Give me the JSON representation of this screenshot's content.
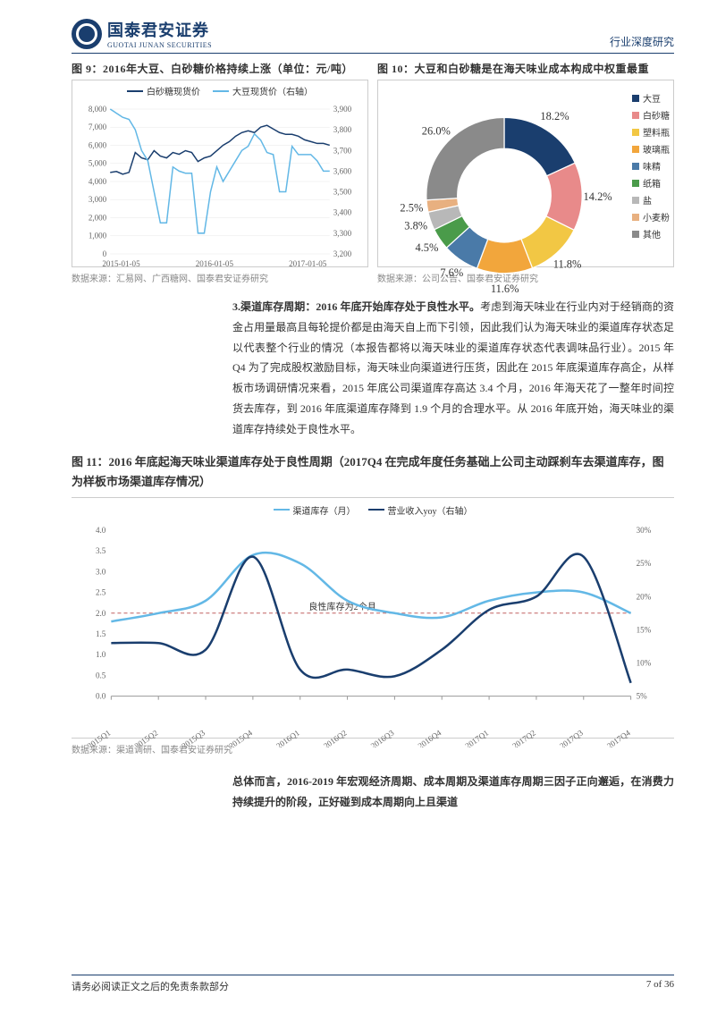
{
  "header": {
    "logo_cn": "国泰君安证券",
    "logo_en": "GUOTAI JUNAN SECURITIES",
    "right": "行业深度研究"
  },
  "fig9": {
    "title": "图 9：2016年大豆、白砂糖价格持续上涨（单位：元/吨）",
    "legend1": "白砂糖现货价",
    "legend2": "大豆现货价（右轴）",
    "color1": "#1a3e6e",
    "color2": "#63b8e6",
    "xticks": [
      "2015-01-05",
      "2016-01-05",
      "2017-01-05"
    ],
    "left_ticks": [
      "0",
      "1,000",
      "2,000",
      "3,000",
      "4,000",
      "5,000",
      "6,000",
      "7,000",
      "8,000"
    ],
    "right_ticks": [
      "3,200",
      "3,300",
      "3,400",
      "3,500",
      "3,600",
      "3,700",
      "3,800",
      "3,900"
    ],
    "source": "数据来源：汇易网、广西糖网、国泰君安证券研究",
    "series1_y": [
      4500,
      4550,
      4400,
      4500,
      5600,
      5300,
      5200,
      5700,
      5400,
      5300,
      5600,
      5500,
      5700,
      5600,
      5100,
      5300,
      5400,
      5700,
      6000,
      6200,
      6500,
      6700,
      6800,
      6700,
      7000,
      7100,
      6900,
      6700,
      6600,
      6600,
      6500,
      6300,
      6200,
      6100,
      6100,
      6000
    ],
    "series2_y": [
      3900,
      3880,
      3860,
      3850,
      3800,
      3700,
      3650,
      3500,
      3350,
      3350,
      3620,
      3600,
      3590,
      3590,
      3300,
      3300,
      3500,
      3620,
      3550,
      3600,
      3650,
      3700,
      3720,
      3780,
      3750,
      3690,
      3680,
      3500,
      3500,
      3720,
      3680,
      3680,
      3680,
      3650,
      3600,
      3600
    ],
    "left_min": 0,
    "left_max": 8000,
    "right_min": 3200,
    "right_max": 3900
  },
  "fig10": {
    "title": "图 10：大豆和白砂糖是在海天味业成本构成中权重最重",
    "source": "数据来源：公司公告、国泰君安证券研究",
    "slices": [
      {
        "label": "大豆",
        "value": 18.2,
        "color": "#1a3e6e"
      },
      {
        "label": "白砂糖",
        "value": 14.2,
        "color": "#e88a8a"
      },
      {
        "label": "塑料瓶",
        "value": 11.8,
        "color": "#f2c744"
      },
      {
        "label": "玻璃瓶",
        "value": 11.6,
        "color": "#f2a63c"
      },
      {
        "label": "味精",
        "value": 7.6,
        "color": "#4a7aa8"
      },
      {
        "label": "纸箱",
        "value": 4.5,
        "color": "#4a9b4a"
      },
      {
        "label": "盐",
        "value": 3.8,
        "color": "#b8b8b8"
      },
      {
        "label": "小麦粉",
        "value": 2.5,
        "color": "#e8b080"
      },
      {
        "label": "其他",
        "value": 26.0,
        "color": "#8a8a8a"
      }
    ],
    "legend": [
      "大豆",
      "白砂糖",
      "塑料瓶",
      "玻璃瓶",
      "味精",
      "纸箱",
      "盐",
      "小麦粉",
      "其他"
    ]
  },
  "paragraph1": {
    "bold": "3.渠道库存周期：2016 年底开始库存处于良性水平。",
    "text": "考虑到海天味业在行业内对于经销商的资金占用量最高且每轮提价都是由海天自上而下引领，因此我们认为海天味业的渠道库存状态足以代表整个行业的情况（本报告都将以海天味业的渠道库存状态代表调味品行业）。2015 年 Q4 为了完成股权激励目标，海天味业向渠道进行压货，因此在 2015 年底渠道库存高企，从样板市场调研情况来看，2015 年底公司渠道库存高达 3.4 个月，2016 年海天花了一整年时间控货去库存，到 2016 年底渠道库存降到 1.9 个月的合理水平。从 2016 年底开始，海天味业的渠道库存持续处于良性水平。"
  },
  "fig11": {
    "title": "图 11：2016 年底起海天味业渠道库存处于良性周期（2017Q4 在完成年度任务基础上公司主动踩刹车去渠道库存，图为样板市场渠道库存情况）",
    "legend1": "渠道库存（月）",
    "legend2": "营业收入yoy（右轴）",
    "color1": "#63b8e6",
    "color2": "#1a3e6e",
    "xticks": [
      "2015Q1",
      "2015Q2",
      "2015Q3",
      "2015Q4",
      "2016Q1",
      "2016Q2",
      "2016Q3",
      "2016Q4",
      "2017Q1",
      "2017Q2",
      "2017Q3",
      "2017Q4"
    ],
    "left_ticks": [
      "0.0",
      "0.5",
      "1.0",
      "1.5",
      "2.0",
      "2.5",
      "3.0",
      "3.5",
      "4.0"
    ],
    "right_ticks": [
      "5%",
      "10%",
      "15%",
      "20%",
      "25%",
      "30%"
    ],
    "source": "数据来源：渠道调研、国泰君安证券研究",
    "series1": [
      1.8,
      2.0,
      2.3,
      3.4,
      3.2,
      2.3,
      2.0,
      1.9,
      2.3,
      2.5,
      2.5,
      2.0
    ],
    "series2": [
      13,
      13,
      12,
      26,
      9,
      9,
      8,
      12,
      18,
      20,
      26,
      7
    ],
    "ref_line": 2.0,
    "ref_label": "良性库存为2个月",
    "left_min": 0,
    "left_max": 4,
    "right_min": 5,
    "right_max": 30
  },
  "paragraph2": {
    "bold": "总体而言，2016-2019 年宏观经济周期、成本周期及渠道库存周期三因子正向邂逅，在消费力持续提升的阶段，正好碰到成本周期向上且渠道",
    "text": ""
  },
  "footer": {
    "left": "请务必阅读正文之后的免责条款部分",
    "right": "7 of 36"
  }
}
